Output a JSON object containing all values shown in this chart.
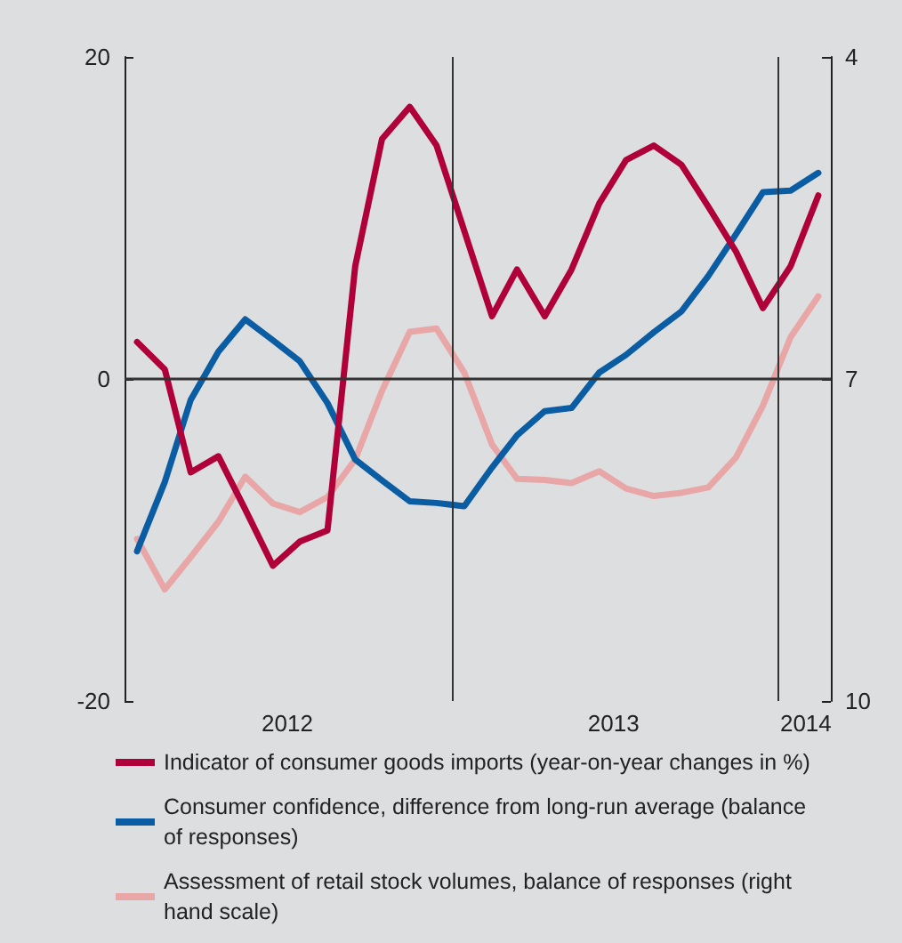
{
  "chart_data": {
    "type": "line",
    "x": [
      "2012-01-15",
      "2012-02-15",
      "2012-03-15",
      "2012-04-15",
      "2012-05-15",
      "2012-06-15",
      "2012-07-15",
      "2012-08-15",
      "2012-09-15",
      "2012-10-15",
      "2012-11-15",
      "2012-12-15",
      "2013-01-15",
      "2013-02-15",
      "2013-03-15",
      "2013-04-15",
      "2013-05-15",
      "2013-06-15",
      "2013-07-15",
      "2013-08-15",
      "2013-09-15",
      "2013-10-15",
      "2013-11-15",
      "2013-12-15",
      "2014-01-15",
      "2014-02-15"
    ],
    "series": [
      {
        "name": "Indicator of consumer goods imports (year-on-year changes in %)",
        "color": "#b0003a",
        "values": [
          2.3,
          0.6,
          -5.8,
          -4.8,
          -8.1,
          -11.6,
          -10.1,
          -9.4,
          7.0,
          14.9,
          16.9,
          14.5,
          9.2,
          3.9,
          6.8,
          3.9,
          6.8,
          10.9,
          13.6,
          14.5,
          13.3,
          10.7,
          7.9,
          4.4,
          7.0,
          11.4
        ]
      },
      {
        "name": "Consumer confidence, difference from long-run average (balance of responses)",
        "color": "#0a5ca3",
        "values": [
          -10.7,
          -6.4,
          -1.3,
          1.7,
          3.7,
          2.4,
          1.1,
          -1.5,
          -5.0,
          -6.3,
          -7.6,
          -7.7,
          -7.9,
          -5.5,
          -3.5,
          -2.0,
          -1.8,
          0.4,
          1.5,
          2.9,
          4.2,
          6.4,
          9.0,
          11.6,
          11.7,
          12.8
        ]
      },
      {
        "name": "Assessment of retail stock volumes, balance of responses (right hand scale)",
        "color": "#e8a6a6",
        "axis": "y2",
        "values": [
          8.49,
          8.96,
          8.66,
          8.33,
          7.91,
          8.16,
          8.24,
          8.1,
          7.75,
          7.11,
          6.56,
          6.53,
          6.94,
          7.61,
          7.93,
          7.94,
          7.97,
          7.86,
          8.02,
          8.09,
          8.06,
          8.01,
          7.73,
          7.25,
          6.61,
          6.23
        ]
      }
    ],
    "xlim": [
      "2012-01",
      "2014-03"
    ],
    "xticks": [
      {
        "value": "2012-07",
        "label": "2012"
      },
      {
        "value": "2013-07",
        "label": "2013"
      },
      {
        "value": "2014-02",
        "label": "2014"
      }
    ],
    "ylim": [
      -20,
      20
    ],
    "yticks": [
      -20,
      0,
      20
    ],
    "y2lim": [
      10,
      4
    ],
    "y2ticks": [
      4,
      7,
      10
    ],
    "ref_lines": [
      {
        "axis": "y",
        "value": 0
      },
      {
        "axis": "x",
        "value": "2013-01"
      },
      {
        "axis": "x",
        "value": "2014-01"
      }
    ],
    "legend": "bottom",
    "marker": "none",
    "line_style": "solid"
  }
}
